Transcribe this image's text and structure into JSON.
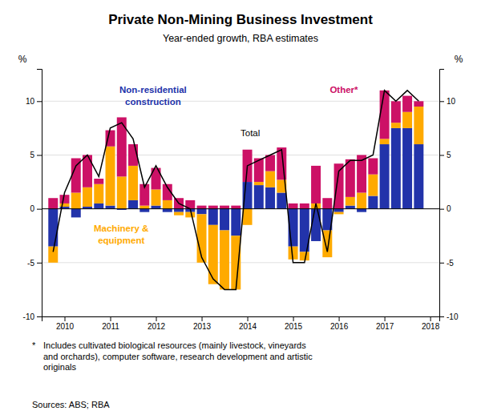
{
  "chart_data": {
    "type": "bar",
    "stacked": true,
    "grid": true,
    "title": "Private Non-Mining Business Investment",
    "subtitle": "Year-ended growth, RBA estimates",
    "ylabel": "%",
    "y2label": "%",
    "x": [
      2009.75,
      2010.0,
      2010.25,
      2010.5,
      2010.75,
      2011.0,
      2011.25,
      2011.5,
      2011.75,
      2012.0,
      2012.25,
      2012.5,
      2012.75,
      2013.0,
      2013.25,
      2013.5,
      2013.75,
      2014.0,
      2014.25,
      2014.5,
      2014.75,
      2015.0,
      2015.25,
      2015.5,
      2015.75,
      2016.0,
      2016.25,
      2016.5,
      2016.75,
      2017.0,
      2017.25,
      2017.5,
      2017.75
    ],
    "xlim": [
      2009.5,
      2018.2
    ],
    "xticks": [
      2010,
      2011,
      2012,
      2013,
      2014,
      2015,
      2016,
      2017,
      2018
    ],
    "ylim": [
      -10,
      13
    ],
    "yticks": [
      -10,
      -5,
      0,
      5,
      10
    ],
    "y2lim": [
      -10,
      13
    ],
    "y2ticks": [
      -10,
      -5,
      0,
      5,
      10
    ],
    "series": [
      {
        "name": "Non-residential\nconstruction",
        "type": "bar",
        "color": "#2233aa",
        "values": [
          -3.5,
          0.2,
          -0.8,
          0.2,
          0.5,
          0.3,
          -0.1,
          0.8,
          -0.3,
          0.3,
          -0.3,
          -0.3,
          -0.3,
          -0.5,
          -1.5,
          -2.0,
          -2.5,
          2.5,
          2.2,
          2.0,
          1.5,
          -3.5,
          -4.0,
          -3.0,
          -2.0,
          -0.3,
          0.3,
          -0.3,
          1.2,
          6.0,
          7.5,
          7.5,
          6.0
        ]
      },
      {
        "name": "Machinery &\nequipment",
        "type": "bar",
        "color": "#ffaa00",
        "values": [
          -1.5,
          0.3,
          1.5,
          1.8,
          1.8,
          5.5,
          3.0,
          3.2,
          0.3,
          1.5,
          0.8,
          -0.3,
          -0.5,
          -4.5,
          -5.5,
          -5.5,
          -5.0,
          -1.5,
          0.3,
          1.5,
          1.2,
          -1.2,
          -0.8,
          0.5,
          -2.5,
          -0.2,
          0.8,
          1.5,
          2.0,
          0.5,
          0.5,
          1.5,
          3.5
        ]
      },
      {
        "name": "Other*",
        "type": "bar",
        "color": "#cc1166",
        "values": [
          1.0,
          0.8,
          3.2,
          3.0,
          0.5,
          1.5,
          5.5,
          2.0,
          2.0,
          2.0,
          1.5,
          1.0,
          0.8,
          0.3,
          0.3,
          0.3,
          0.3,
          3.0,
          2.2,
          1.5,
          3.0,
          0.5,
          0.5,
          3.5,
          1.0,
          4.2,
          3.5,
          3.5,
          1.5,
          4.5,
          2.0,
          1.5,
          0.5
        ]
      },
      {
        "name": "Total",
        "type": "line",
        "color": "#000000",
        "values": [
          -4.0,
          1.5,
          4.0,
          5.0,
          3.0,
          7.5,
          8.0,
          6.5,
          2.0,
          4.0,
          2.0,
          0.5,
          0.0,
          -4.5,
          -6.5,
          -7.5,
          -7.5,
          4.0,
          4.5,
          5.0,
          5.5,
          -5.0,
          -5.0,
          0.5,
          -4.0,
          3.5,
          4.5,
          4.5,
          5.0,
          11.0,
          10.0,
          11.0,
          10.0
        ]
      }
    ],
    "annotations": [
      "*",
      "Includes cultivated biological resources (mainly livestock, vineyards\nand orchards), computer software, research development and artistic\noriginals",
      "Sources:  ABS; RBA"
    ]
  }
}
